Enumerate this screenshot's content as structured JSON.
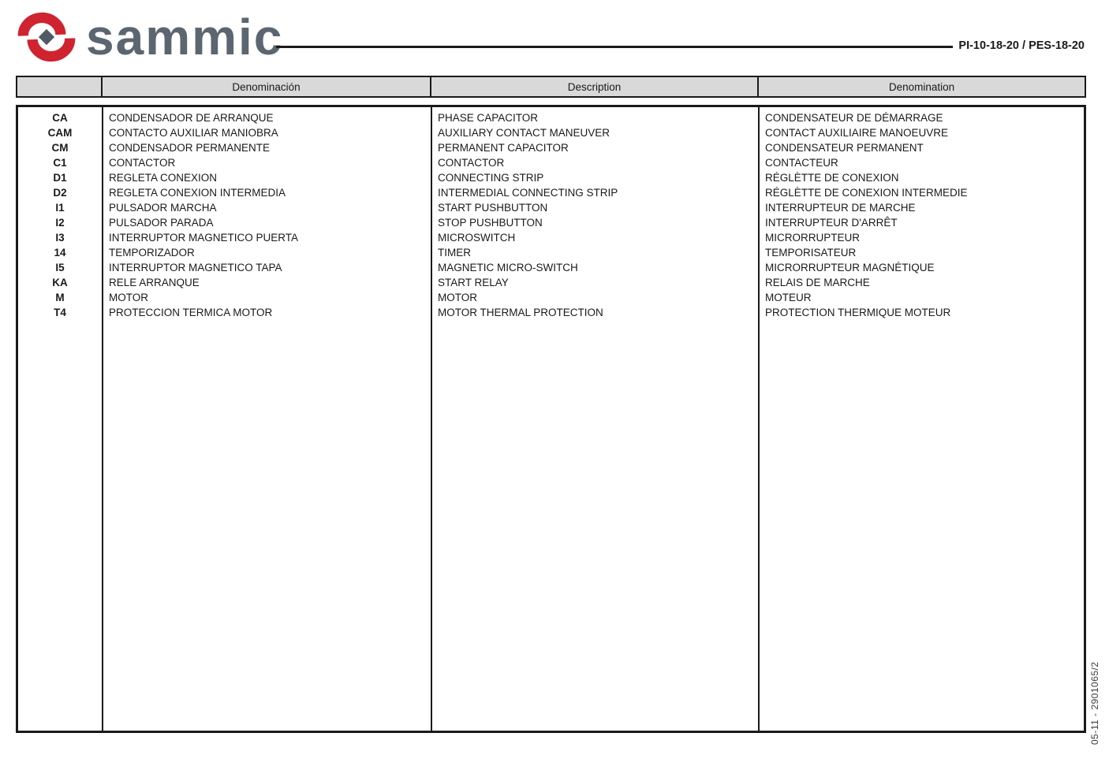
{
  "header": {
    "logo_text": "sammic",
    "doc_code": "PI-10-18-20 / PES-18-20"
  },
  "table": {
    "columns": [
      "",
      "Denominación",
      "Description",
      "Denomination"
    ],
    "rows": [
      {
        "code": "CA",
        "es": "CONDENSADOR DE ARRANQUE",
        "en": "PHASE CAPACITOR",
        "fr": "CONDENSATEUR DE DÉMARRAGE"
      },
      {
        "code": "CAM",
        "es": "CONTACTO AUXILIAR MANIOBRA",
        "en": "AUXILIARY CONTACT MANEUVER",
        "fr": "CONTACT AUXILIAIRE MANOEUVRE"
      },
      {
        "code": "CM",
        "es": "CONDENSADOR PERMANENTE",
        "en": "PERMANENT CAPACITOR",
        "fr": "CONDENSATEUR PERMANENT"
      },
      {
        "code": "C1",
        "es": "CONTACTOR",
        "en": "CONTACTOR",
        "fr": "CONTACTEUR"
      },
      {
        "code": "D1",
        "es": "REGLETA CONEXION",
        "en": "CONNECTING STRIP",
        "fr": "RÉGLÈTTE DE CONEXION"
      },
      {
        "code": "D2",
        "es": "REGLETA CONEXION INTERMEDIA",
        "en": "INTERMEDIAL CONNECTING STRIP",
        "fr": "RÉGLÈTTE DE CONEXION INTERMEDIE"
      },
      {
        "code": "I1",
        "es": "PULSADOR MARCHA",
        "en": "START PUSHBUTTON",
        "fr": "INTERRUPTEUR DE MARCHE"
      },
      {
        "code": "I2",
        "es": "PULSADOR PARADA",
        "en": "STOP PUSHBUTTON",
        "fr": "INTERRUPTEUR D'ARRÊT"
      },
      {
        "code": "I3",
        "es": "INTERRUPTOR MAGNETICO PUERTA",
        "en": "MICROSWITCH",
        "fr": "MICRORRUPTEUR"
      },
      {
        "code": "14",
        "es": "TEMPORIZADOR",
        "en": "TIMER",
        "fr": "TEMPORISATEUR"
      },
      {
        "code": "I5",
        "es": "INTERRUPTOR MAGNETICO TAPA",
        "en": "MAGNETIC MICRO-SWITCH",
        "fr": "MICRORRUPTEUR MAGNÉTIQUE"
      },
      {
        "code": "KA",
        "es": "RELE ARRANQUE",
        "en": "START RELAY",
        "fr": "RELAIS DE MARCHE"
      },
      {
        "code": "M",
        "es": "MOTOR",
        "en": "MOTOR",
        "fr": "MOTEUR"
      },
      {
        "code": "T4",
        "es": "PROTECCION TERMICA MOTOR",
        "en": "MOTOR THERMAL PROTECTION",
        "fr": "PROTECTION THERMIQUE MOTEUR"
      }
    ]
  },
  "footer": {
    "vertical_note": "05-11 - 2901065/2"
  },
  "colors": {
    "logo-red": "#cf2430",
    "logo-gray": "#5b6670",
    "header-fill": "#d9d9d9",
    "border": "#1a1a1a",
    "text": "#1a1a1a"
  }
}
